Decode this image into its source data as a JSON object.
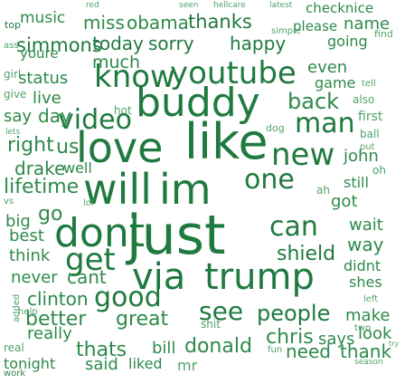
{
  "cloud": {
    "color": "#2d8a4a",
    "words": [
      {
        "text": "top",
        "tone": "dark"
      },
      {
        "text": "music",
        "tone": "mid"
      },
      {
        "text": "red",
        "tone": "light"
      },
      {
        "text": "miss",
        "tone": "mid"
      },
      {
        "text": "obama",
        "tone": "mid"
      },
      {
        "text": "seen",
        "tone": "light"
      },
      {
        "text": "hellcare",
        "tone": "light"
      },
      {
        "text": "latest",
        "tone": "light"
      },
      {
        "text": "thanks",
        "tone": "dark"
      },
      {
        "text": "checknice",
        "tone": "mid"
      },
      {
        "text": "please",
        "tone": "mid"
      },
      {
        "text": "name",
        "tone": "mid"
      },
      {
        "text": "simple",
        "tone": "light"
      },
      {
        "text": "simmons",
        "tone": "dark"
      },
      {
        "text": "today",
        "tone": "dark"
      },
      {
        "text": "sorry",
        "tone": "dark"
      },
      {
        "text": "happy",
        "tone": "dark"
      },
      {
        "text": "going",
        "tone": "mid"
      },
      {
        "text": "find",
        "tone": "light"
      },
      {
        "text": "youre",
        "tone": "mid"
      },
      {
        "text": "ass",
        "tone": "light"
      },
      {
        "text": "much",
        "tone": "mid"
      },
      {
        "text": "girl",
        "tone": "light"
      },
      {
        "text": "status",
        "tone": "mid"
      },
      {
        "text": "know",
        "tone": "dark"
      },
      {
        "text": "youtube",
        "tone": "dark"
      },
      {
        "text": "even",
        "tone": "mid"
      },
      {
        "text": "game",
        "tone": "mid"
      },
      {
        "text": "tell",
        "tone": "light"
      },
      {
        "text": "give",
        "tone": "light"
      },
      {
        "text": "live",
        "tone": "mid"
      },
      {
        "text": "hot",
        "tone": "light"
      },
      {
        "text": "also",
        "tone": "light"
      },
      {
        "text": "say",
        "tone": "mid"
      },
      {
        "text": "day",
        "tone": "mid"
      },
      {
        "text": "video",
        "tone": "dark"
      },
      {
        "text": "buddy",
        "tone": "dark"
      },
      {
        "text": "back",
        "tone": "mid"
      },
      {
        "text": "first",
        "tone": "light"
      },
      {
        "text": "man",
        "tone": "dark"
      },
      {
        "text": "ball",
        "tone": "light"
      },
      {
        "text": "dog",
        "tone": "light"
      },
      {
        "text": "lets",
        "tone": "light"
      },
      {
        "text": "put",
        "tone": "light"
      },
      {
        "text": "right",
        "tone": "mid"
      },
      {
        "text": "us",
        "tone": "mid"
      },
      {
        "text": "love",
        "tone": "dark"
      },
      {
        "text": "like",
        "tone": "dark"
      },
      {
        "text": "new",
        "tone": "dark"
      },
      {
        "text": "john",
        "tone": "mid"
      },
      {
        "text": "drake",
        "tone": "mid"
      },
      {
        "text": "well",
        "tone": "mid"
      },
      {
        "text": "oh",
        "tone": "light"
      },
      {
        "text": "still",
        "tone": "mid"
      },
      {
        "text": "one",
        "tone": "dark"
      },
      {
        "text": "lifetime",
        "tone": "mid"
      },
      {
        "text": "will",
        "tone": "dark"
      },
      {
        "text": "lol",
        "tone": "light"
      },
      {
        "text": "im",
        "tone": "dark"
      },
      {
        "text": "ah",
        "tone": "light"
      },
      {
        "text": "got",
        "tone": "mid"
      },
      {
        "text": "vs",
        "tone": "light"
      },
      {
        "text": "big",
        "tone": "mid"
      },
      {
        "text": "go",
        "tone": "mid"
      },
      {
        "text": "dont",
        "tone": "dark"
      },
      {
        "text": "just",
        "tone": "dark"
      },
      {
        "text": "can",
        "tone": "dark"
      },
      {
        "text": "wait",
        "tone": "mid"
      },
      {
        "text": "best",
        "tone": "mid"
      },
      {
        "text": "way",
        "tone": "mid"
      },
      {
        "text": "think",
        "tone": "mid"
      },
      {
        "text": "get",
        "tone": "dark"
      },
      {
        "text": "shield",
        "tone": "dark"
      },
      {
        "text": "never",
        "tone": "mid"
      },
      {
        "text": "cant",
        "tone": "mid"
      },
      {
        "text": "via",
        "tone": "dark"
      },
      {
        "text": "trump",
        "tone": "dark"
      },
      {
        "text": "didnt",
        "tone": "mid"
      },
      {
        "text": "shes",
        "tone": "mid"
      },
      {
        "text": "added",
        "tone": "light"
      },
      {
        "text": "clinton",
        "tone": "mid"
      },
      {
        "text": "good",
        "tone": "dark"
      },
      {
        "text": "left",
        "tone": "light"
      },
      {
        "text": "better",
        "tone": "mid"
      },
      {
        "text": "great",
        "tone": "mid"
      },
      {
        "text": "see",
        "tone": "dark"
      },
      {
        "text": "people",
        "tone": "dark"
      },
      {
        "text": "make",
        "tone": "mid"
      },
      {
        "text": "help",
        "tone": "light"
      },
      {
        "text": "shit",
        "tone": "light"
      },
      {
        "text": "really",
        "tone": "mid"
      },
      {
        "text": "real",
        "tone": "light"
      },
      {
        "text": "two",
        "tone": "light"
      },
      {
        "text": "chris",
        "tone": "mid"
      },
      {
        "text": "says",
        "tone": "mid"
      },
      {
        "text": "look",
        "tone": "mid"
      },
      {
        "text": "tonight",
        "tone": "mid"
      },
      {
        "text": "thats",
        "tone": "mid"
      },
      {
        "text": "bill",
        "tone": "mid"
      },
      {
        "text": "donald",
        "tone": "mid"
      },
      {
        "text": "fun",
        "tone": "light"
      },
      {
        "text": "need",
        "tone": "mid"
      },
      {
        "text": "thank",
        "tone": "mid"
      },
      {
        "text": "try",
        "tone": "light"
      },
      {
        "text": "work",
        "tone": "mid"
      },
      {
        "text": "said",
        "tone": "mid"
      },
      {
        "text": "liked",
        "tone": "mid"
      },
      {
        "text": "mr",
        "tone": "light"
      },
      {
        "text": "season",
        "tone": "light"
      }
    ]
  }
}
